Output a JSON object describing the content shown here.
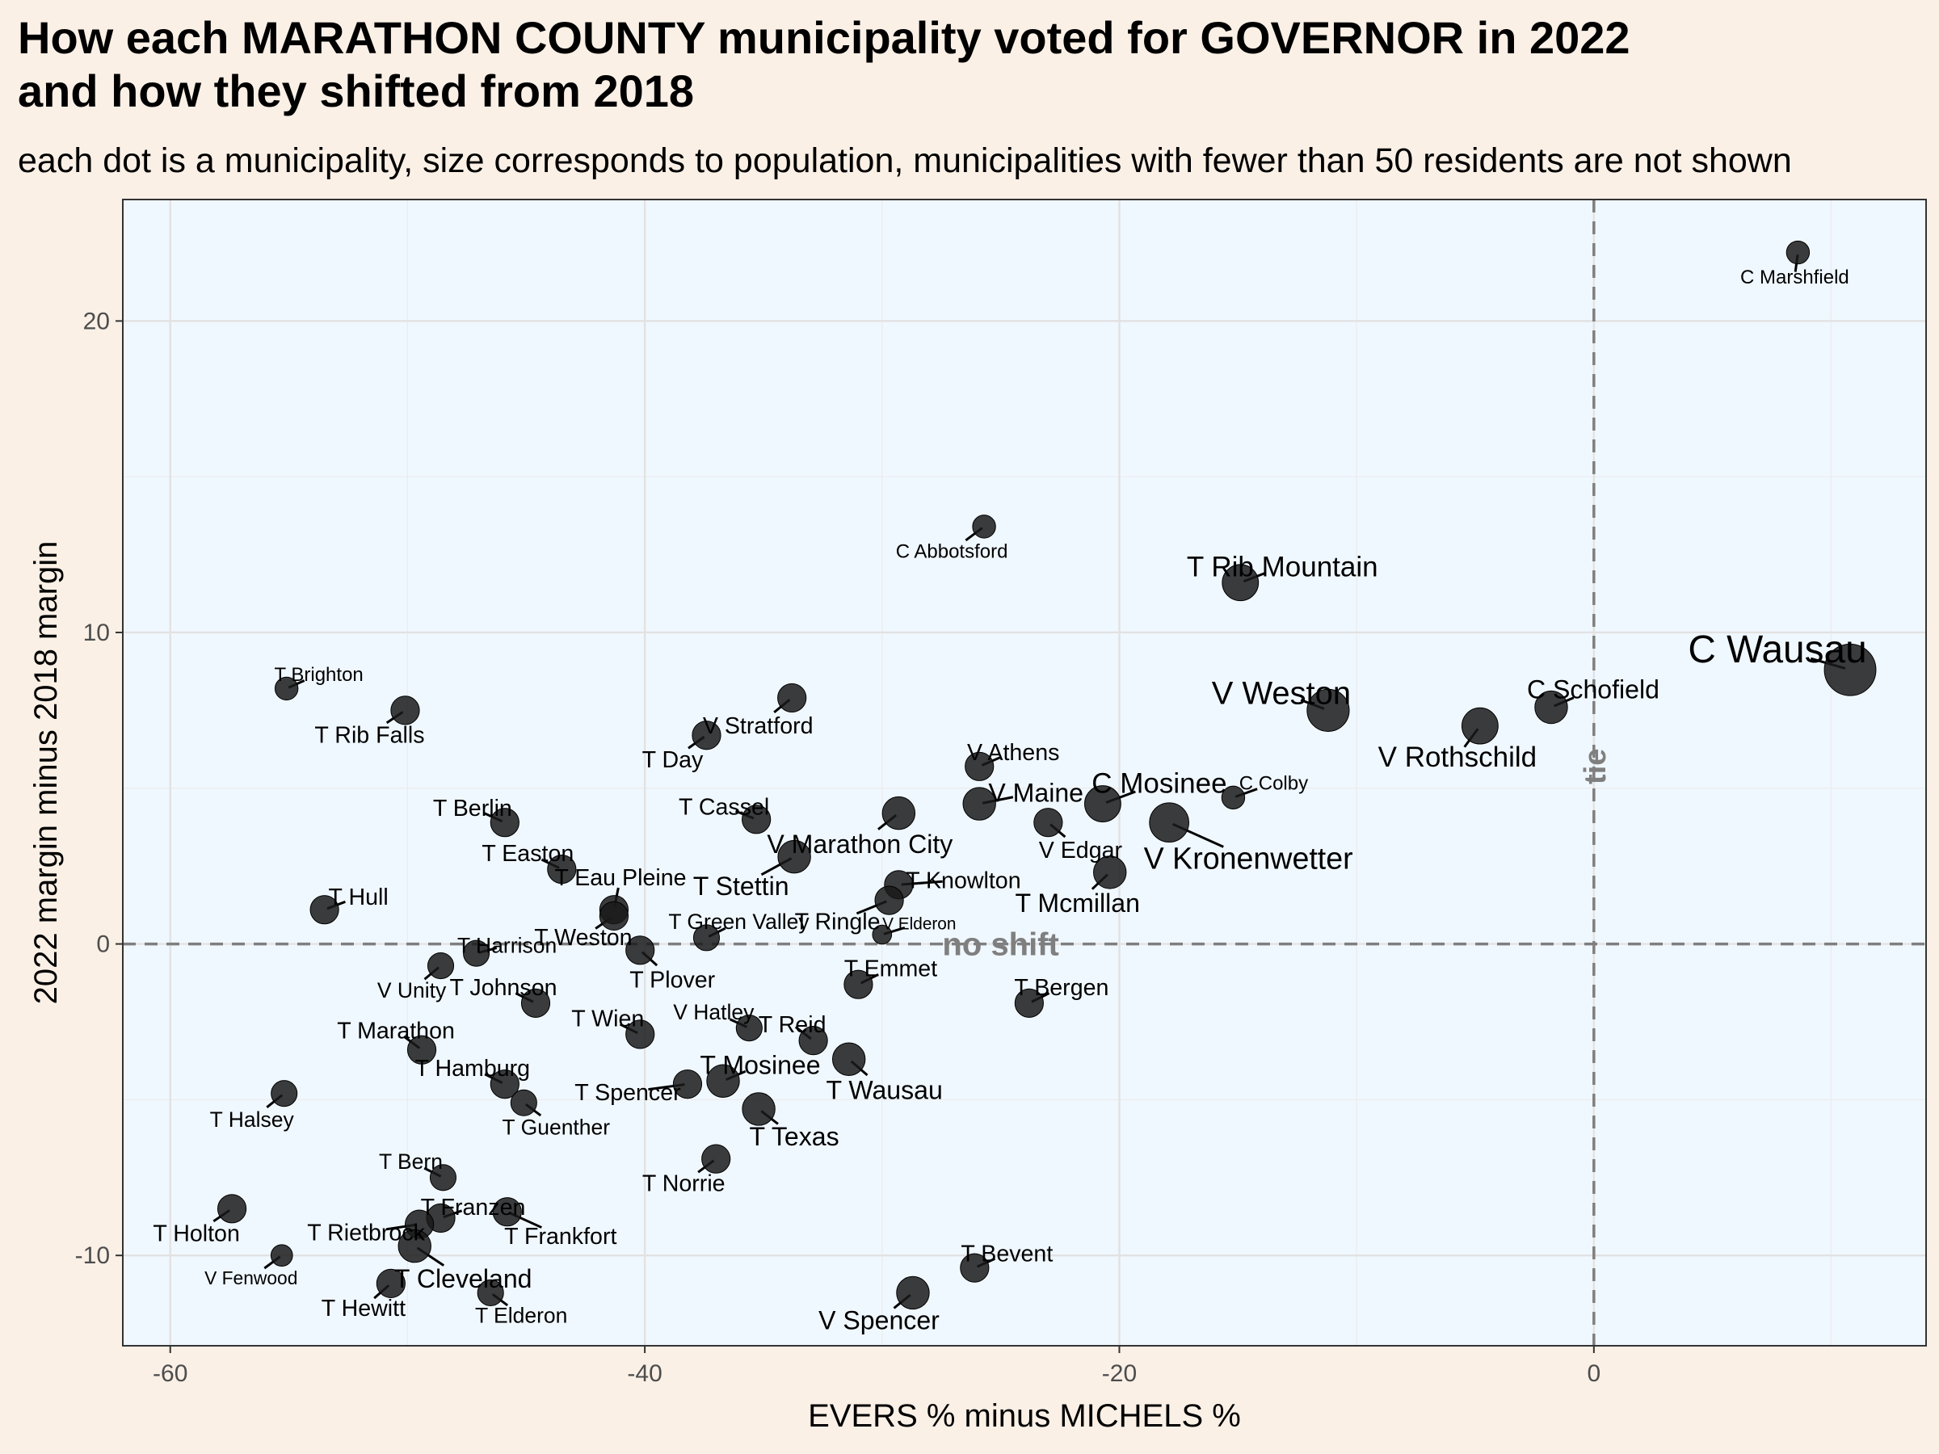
{
  "header": {
    "title_line1": "How each MARATHON COUNTY municipality voted for GOVERNOR in 2022",
    "title_line2": "and how they shifted from 2018",
    "subtitle": "each dot is a municipality, size corresponds to population, municipalities with fewer than 50 residents are not shown"
  },
  "colors": {
    "panel_bg": "#f0f8ff",
    "page_bg": "#faf0e6",
    "point": "#1a1a1a",
    "reference_line": "#7f7f7f"
  },
  "chart_data": {
    "type": "scatter",
    "xlabel": "EVERS % minus MICHELS %",
    "ylabel": "2022 margin minus 2018 margin",
    "xlim": [
      -62,
      14
    ],
    "ylim": [
      -12.9,
      23.9
    ],
    "xticks": [
      -60,
      -40,
      -20,
      0
    ],
    "yticks": [
      -10,
      0,
      10,
      20
    ],
    "grid": true,
    "reference_lines": [
      {
        "axis": "y",
        "value": 0,
        "label": "no shift"
      },
      {
        "axis": "x",
        "value": 0,
        "label": "tie"
      }
    ],
    "points": [
      {
        "name": "C Marshfield",
        "x": 8.6,
        "y": 22.2,
        "size": 1
      },
      {
        "name": "C Abbotsford",
        "x": -25.7,
        "y": 13.4,
        "size": 1
      },
      {
        "name": "T Rib Mountain",
        "x": -14.9,
        "y": 11.6,
        "size": 4
      },
      {
        "name": "C Wausau",
        "x": 10.8,
        "y": 8.8,
        "size": 10
      },
      {
        "name": "V Weston",
        "x": -11.2,
        "y": 7.5,
        "size": 6
      },
      {
        "name": "V Rothschild",
        "x": -4.8,
        "y": 7.0,
        "size": 4
      },
      {
        "name": "C Schofield",
        "x": -1.8,
        "y": 7.6,
        "size": 3
      },
      {
        "name": "T Brighton",
        "x": -55.1,
        "y": 8.2,
        "size": 1
      },
      {
        "name": "T Rib Falls",
        "x": -50.1,
        "y": 7.5,
        "size": 2
      },
      {
        "name": "V Stratford",
        "x": -33.8,
        "y": 7.9,
        "size": 2
      },
      {
        "name": "T Day",
        "x": -37.4,
        "y": 6.7,
        "size": 2
      },
      {
        "name": "V Athens",
        "x": -25.9,
        "y": 5.7,
        "size": 2
      },
      {
        "name": "V Maine",
        "x": -25.9,
        "y": 4.5,
        "size": 3
      },
      {
        "name": "C Mosinee",
        "x": -20.7,
        "y": 4.5,
        "size": 4
      },
      {
        "name": "C Colby",
        "x": -15.2,
        "y": 4.7,
        "size": 1
      },
      {
        "name": "V Kronenwetter",
        "x": -17.9,
        "y": 3.9,
        "size": 5
      },
      {
        "name": "V Edgar",
        "x": -23.0,
        "y": 3.9,
        "size": 2
      },
      {
        "name": "T Berlin",
        "x": -45.9,
        "y": 3.9,
        "size": 2
      },
      {
        "name": "T Cassel",
        "x": -35.3,
        "y": 4.0,
        "size": 2
      },
      {
        "name": "V Marathon City",
        "x": -29.3,
        "y": 4.2,
        "size": 3
      },
      {
        "name": "T Stettin",
        "x": -33.7,
        "y": 2.8,
        "size": 3
      },
      {
        "name": "T Easton",
        "x": -43.5,
        "y": 2.4,
        "size": 2
      },
      {
        "name": "T Mcmillan",
        "x": -20.4,
        "y": 2.3,
        "size": 3
      },
      {
        "name": "T Knowlton",
        "x": -29.3,
        "y": 1.9,
        "size": 2
      },
      {
        "name": "T Ringle",
        "x": -29.7,
        "y": 1.4,
        "size": 2
      },
      {
        "name": "T Eau Pleine",
        "x": -41.3,
        "y": 1.1,
        "size": 2
      },
      {
        "name": "T Hull",
        "x": -53.5,
        "y": 1.1,
        "size": 2
      },
      {
        "name": "T Weston",
        "x": -41.3,
        "y": 0.9,
        "size": 2
      },
      {
        "name": "V Elderon",
        "x": -30.0,
        "y": 0.3,
        "size": 0.5
      },
      {
        "name": "T Green Valley",
        "x": -37.4,
        "y": 0.2,
        "size": 1.5
      },
      {
        "name": "T Harrison",
        "x": -47.1,
        "y": -0.3,
        "size": 1.5
      },
      {
        "name": "T Plover",
        "x": -40.2,
        "y": -0.2,
        "size": 2
      },
      {
        "name": "V Unity",
        "x": -48.6,
        "y": -0.7,
        "size": 1.5
      },
      {
        "name": "T Emmet",
        "x": -31.0,
        "y": -1.3,
        "size": 2
      },
      {
        "name": "T Johnson",
        "x": -44.6,
        "y": -1.9,
        "size": 2
      },
      {
        "name": "T Bergen",
        "x": -23.8,
        "y": -1.9,
        "size": 2
      },
      {
        "name": "V Hatley",
        "x": -35.6,
        "y": -2.7,
        "size": 1.5
      },
      {
        "name": "T Wien",
        "x": -40.2,
        "y": -2.9,
        "size": 2
      },
      {
        "name": "T Reid",
        "x": -32.9,
        "y": -3.1,
        "size": 2
      },
      {
        "name": "T Marathon",
        "x": -49.4,
        "y": -3.4,
        "size": 2
      },
      {
        "name": "T Wausau",
        "x": -31.4,
        "y": -3.7,
        "size": 3
      },
      {
        "name": "T Mosinee",
        "x": -36.7,
        "y": -4.4,
        "size": 3
      },
      {
        "name": "T Hamburg",
        "x": -45.9,
        "y": -4.5,
        "size": 2
      },
      {
        "name": "T Spencer",
        "x": -38.2,
        "y": -4.5,
        "size": 2
      },
      {
        "name": "T Halsey",
        "x": -55.2,
        "y": -4.8,
        "size": 1.5
      },
      {
        "name": "T Guenther",
        "x": -45.1,
        "y": -5.1,
        "size": 1.5
      },
      {
        "name": "T Texas",
        "x": -35.2,
        "y": -5.3,
        "size": 3
      },
      {
        "name": "T Norrie",
        "x": -37.0,
        "y": -6.9,
        "size": 2
      },
      {
        "name": "T Bern",
        "x": -48.5,
        "y": -7.5,
        "size": 1.5
      },
      {
        "name": "T Holton",
        "x": -57.4,
        "y": -8.5,
        "size": 2
      },
      {
        "name": "T Frankfort",
        "x": -45.8,
        "y": -8.6,
        "size": 2
      },
      {
        "name": "T Franzen",
        "x": -48.6,
        "y": -8.8,
        "size": 2
      },
      {
        "name": "T Rietbrock",
        "x": -49.5,
        "y": -9.0,
        "size": 2
      },
      {
        "name": "V Fenwood",
        "x": -55.3,
        "y": -10.0,
        "size": 0.8
      },
      {
        "name": "T Cleveland",
        "x": -49.7,
        "y": -9.7,
        "size": 3
      },
      {
        "name": "T Bevent",
        "x": -26.1,
        "y": -10.4,
        "size": 2
      },
      {
        "name": "T Hewitt",
        "x": -50.7,
        "y": -10.9,
        "size": 2
      },
      {
        "name": "T Elderon",
        "x": -46.5,
        "y": -11.2,
        "size": 1.5
      },
      {
        "name": "V Spencer",
        "x": -28.7,
        "y": -11.2,
        "size": 3
      }
    ]
  }
}
